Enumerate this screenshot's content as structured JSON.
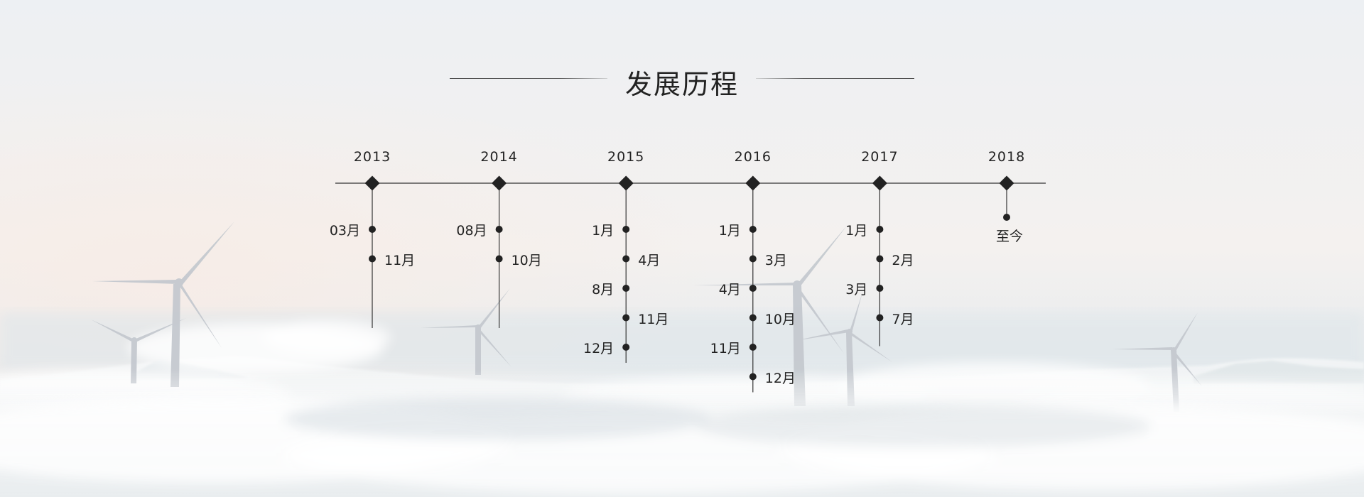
{
  "title": "发展历程",
  "timeline": {
    "years": [
      {
        "year": "2013",
        "events": [
          {
            "label": "03月",
            "side": "left"
          },
          {
            "label": "11月",
            "side": "right"
          }
        ]
      },
      {
        "year": "2014",
        "events": [
          {
            "label": "08月",
            "side": "left"
          },
          {
            "label": "10月",
            "side": "right"
          }
        ]
      },
      {
        "year": "2015",
        "events": [
          {
            "label": "1月",
            "side": "left"
          },
          {
            "label": "4月",
            "side": "right"
          },
          {
            "label": "8月",
            "side": "left"
          },
          {
            "label": "11月",
            "side": "right"
          },
          {
            "label": "12月",
            "side": "left"
          }
        ]
      },
      {
        "year": "2016",
        "events": [
          {
            "label": "1月",
            "side": "left"
          },
          {
            "label": "3月",
            "side": "right"
          },
          {
            "label": "4月",
            "side": "left"
          },
          {
            "label": "10月",
            "side": "right"
          },
          {
            "label": "11月",
            "side": "left"
          },
          {
            "label": "12月",
            "side": "right"
          }
        ]
      },
      {
        "year": "2017",
        "events": [
          {
            "label": "1月",
            "side": "left"
          },
          {
            "label": "2月",
            "side": "right"
          },
          {
            "label": "3月",
            "side": "left"
          },
          {
            "label": "7月",
            "side": "right"
          }
        ]
      },
      {
        "year": "2018",
        "events": [
          {
            "label": "至今",
            "side": "below"
          }
        ]
      }
    ]
  },
  "colors": {
    "line": "#333333",
    "marker": "#222222"
  }
}
